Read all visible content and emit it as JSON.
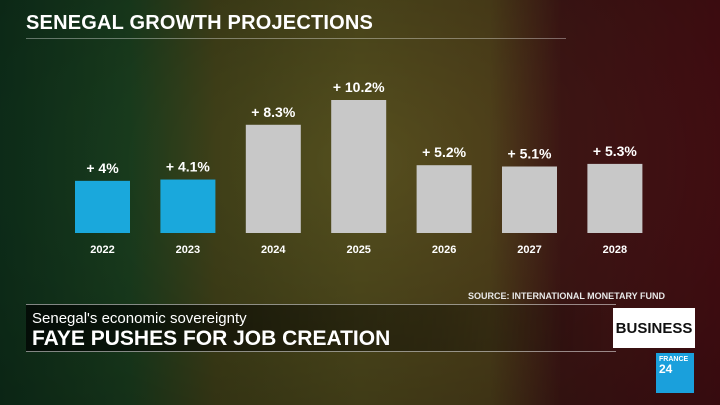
{
  "chart_data": {
    "type": "bar",
    "title": "SENEGAL GROWTH PROJECTIONS",
    "categories": [
      "2022",
      "2023",
      "2024",
      "2025",
      "2026",
      "2027",
      "2028"
    ],
    "values": [
      4,
      4.1,
      8.3,
      10.2,
      5.2,
      5.1,
      5.3
    ],
    "labels": [
      "+ 4%",
      "+ 4.1%",
      "+ 8.3%",
      "+ 10.2%",
      "+ 5.2%",
      "+ 5.1%",
      "+ 5.3%"
    ],
    "colors": [
      "#1aa8dc",
      "#1aa8dc",
      "#c8c8c8",
      "#c8c8c8",
      "#c8c8c8",
      "#c8c8c8",
      "#c8c8c8"
    ],
    "ylim": [
      0,
      10.2
    ],
    "grid": false,
    "source": "SOURCE: INTERNATIONAL MONETARY FUND"
  },
  "lower_third": {
    "kicker": "Senegal's economic sovereignty",
    "headline": "FAYE PUSHES FOR JOB CREATION",
    "section": "BUSINESS"
  },
  "logo": {
    "line1": "FRANCE",
    "line2": "24"
  }
}
